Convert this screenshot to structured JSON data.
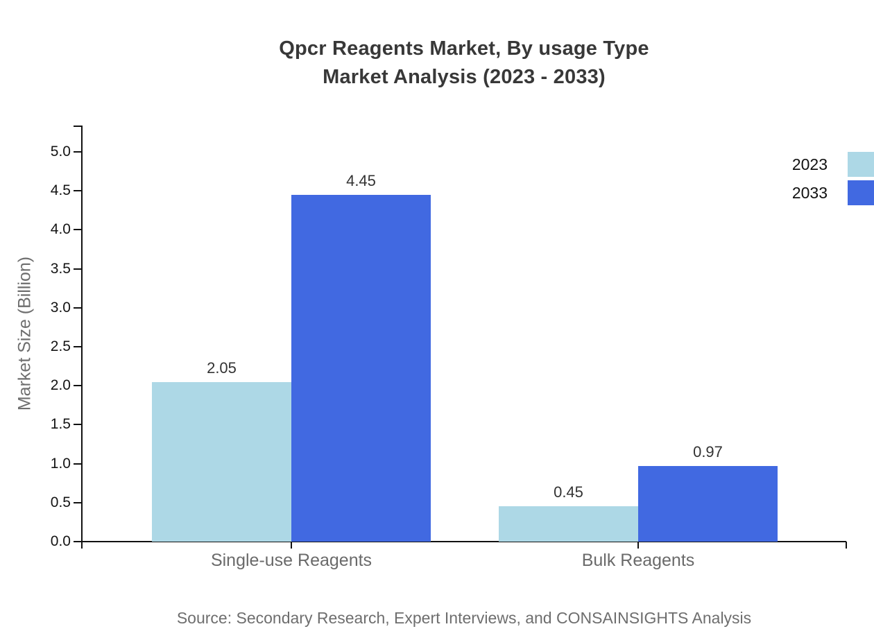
{
  "title": {
    "line1": "Qpcr Reagents Market, By usage Type",
    "line2": "Market Analysis (2023 - 2033)"
  },
  "source_note": "Source: Secondary Research, Expert Interviews, and CONSAINSIGHTS Analysis",
  "chart_data": {
    "type": "bar",
    "title": "Qpcr Reagents Market, By usage Type Market Analysis (2023 - 2033)",
    "xlabel": "",
    "ylabel": "Market Size (Billion)",
    "categories": [
      "Single-use Reagents",
      "Bulk Reagents"
    ],
    "series": [
      {
        "name": "2023",
        "color": "#ADD8E6",
        "values": [
          2.05,
          0.45
        ]
      },
      {
        "name": "2033",
        "color": "#4169E1",
        "values": [
          4.45,
          0.97
        ]
      }
    ],
    "value_label_decimals": 2,
    "ylim": [
      0,
      5.0
    ],
    "yticks": [
      "0.0",
      "0.5",
      "1.0",
      "1.5",
      "2.0",
      "2.5",
      "3.0",
      "3.5",
      "4.0",
      "4.5",
      "5.0"
    ],
    "grid": false,
    "legend_position": "top-right"
  }
}
